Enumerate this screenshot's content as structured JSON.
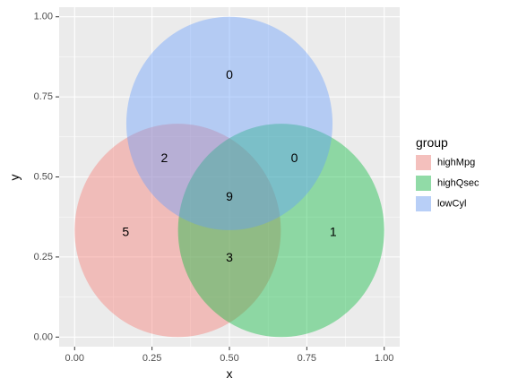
{
  "chart_data": {
    "type": "venn",
    "xlabel": "x",
    "ylabel": "y",
    "xlim": [
      -0.05,
      1.05
    ],
    "ylim": [
      -0.03,
      1.03
    ],
    "x_ticks": [
      {
        "value": 0.0,
        "label": "0.00"
      },
      {
        "value": 0.25,
        "label": "0.25"
      },
      {
        "value": 0.5,
        "label": "0.50"
      },
      {
        "value": 0.75,
        "label": "0.75"
      },
      {
        "value": 1.0,
        "label": "1.00"
      }
    ],
    "y_ticks": [
      {
        "value": 0.0,
        "label": "0.00"
      },
      {
        "value": 0.25,
        "label": "0.25"
      },
      {
        "value": 0.5,
        "label": "0.50"
      },
      {
        "value": 0.75,
        "label": "0.75"
      },
      {
        "value": 1.0,
        "label": "1.00"
      }
    ],
    "grid": true,
    "sets": [
      {
        "name": "highMpg",
        "color": "#F8766D",
        "cx": 0.333,
        "cy": 0.333,
        "r": 0.333
      },
      {
        "name": "highQsec",
        "color": "#00BA38",
        "cx": 0.667,
        "cy": 0.333,
        "r": 0.333
      },
      {
        "name": "lowCyl",
        "color": "#619CFF",
        "cx": 0.5,
        "cy": 0.667,
        "r": 0.333
      }
    ],
    "regions": [
      {
        "sets": [
          "lowCyl"
        ],
        "count": "0",
        "x": 0.5,
        "y": 0.82
      },
      {
        "sets": [
          "highMpg",
          "lowCyl"
        ],
        "count": "2",
        "x": 0.29,
        "y": 0.56
      },
      {
        "sets": [
          "highQsec",
          "lowCyl"
        ],
        "count": "0",
        "x": 0.71,
        "y": 0.56
      },
      {
        "sets": [
          "highMpg",
          "highQsec",
          "lowCyl"
        ],
        "count": "9",
        "x": 0.5,
        "y": 0.44
      },
      {
        "sets": [
          "highMpg"
        ],
        "count": "5",
        "x": 0.165,
        "y": 0.33
      },
      {
        "sets": [
          "highQsec"
        ],
        "count": "1",
        "x": 0.835,
        "y": 0.33
      },
      {
        "sets": [
          "highMpg",
          "highQsec"
        ],
        "count": "3",
        "x": 0.5,
        "y": 0.25
      }
    ],
    "legend": {
      "title": "group",
      "placement": "right",
      "entries": [
        {
          "label": "highMpg",
          "color": "#F8766D"
        },
        {
          "label": "highQsec",
          "color": "#00BA38"
        },
        {
          "label": "lowCyl",
          "color": "#619CFF"
        }
      ]
    }
  }
}
